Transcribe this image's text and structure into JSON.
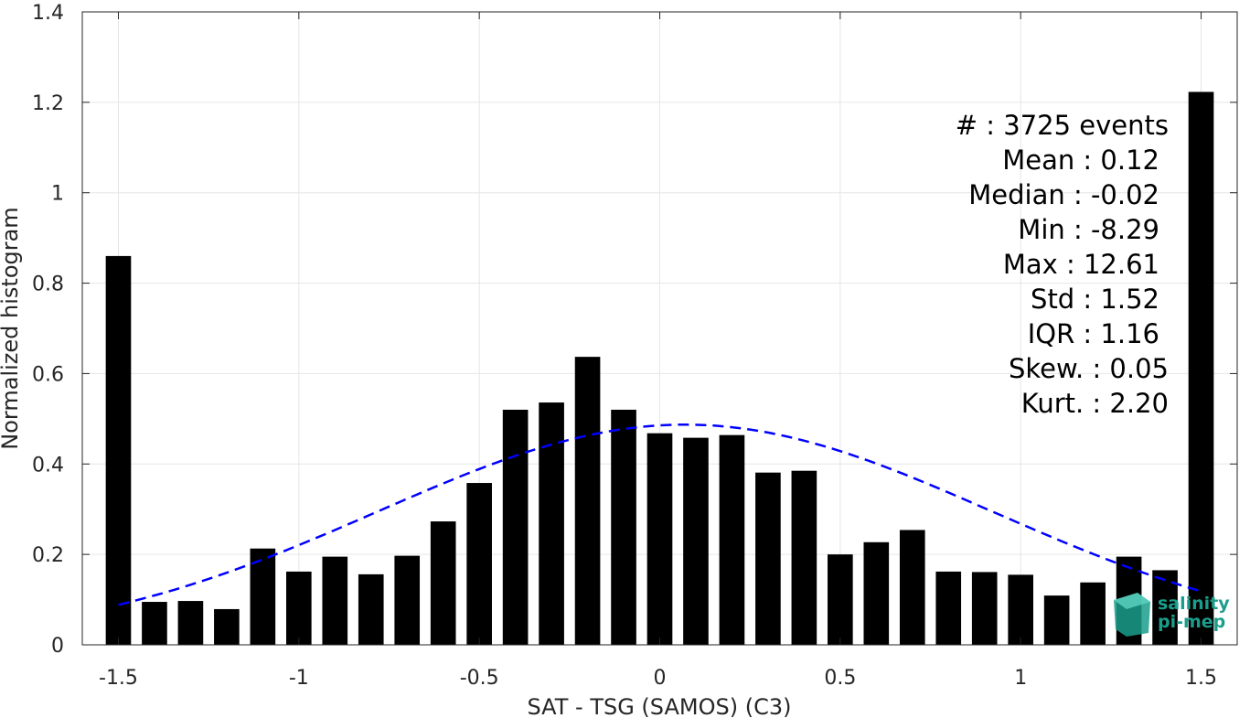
{
  "chart_data": {
    "type": "bar",
    "xlabel": "SAT - TSG (SAMOS) (C3)",
    "ylabel": "Normalized histogram",
    "xlim": [
      -1.6,
      1.6
    ],
    "ylim": [
      0,
      1.4
    ],
    "xticks": [
      -1.5,
      -1,
      -0.5,
      0,
      0.5,
      1,
      1.5
    ],
    "xtick_labels": [
      "-1.5",
      "-1",
      "-0.5",
      "0",
      "0.5",
      "1",
      "1.5"
    ],
    "yticks": [
      0,
      0.2,
      0.4,
      0.6,
      0.8,
      1,
      1.2,
      1.4
    ],
    "ytick_labels": [
      "0",
      "0.2",
      "0.4",
      "0.6",
      "0.8",
      "1",
      "1.2",
      "1.4"
    ],
    "grid": true,
    "bar_color": "#000000",
    "bin_width": 0.1,
    "x": [
      -1.5,
      -1.4,
      -1.3,
      -1.2,
      -1.1,
      -1.0,
      -0.9,
      -0.8,
      -0.7,
      -0.6,
      -0.5,
      -0.4,
      -0.3,
      -0.2,
      -0.1,
      0.0,
      0.1,
      0.2,
      0.3,
      0.4,
      0.5,
      0.6,
      0.7,
      0.8,
      0.9,
      1.0,
      1.1,
      1.2,
      1.3,
      1.4,
      1.5
    ],
    "values": [
      0.86,
      0.095,
      0.097,
      0.079,
      0.213,
      0.162,
      0.195,
      0.156,
      0.197,
      0.273,
      0.358,
      0.52,
      0.536,
      0.637,
      0.52,
      0.468,
      0.458,
      0.464,
      0.381,
      0.385,
      0.2,
      0.227,
      0.254,
      0.162,
      0.161,
      0.155,
      0.109,
      0.138,
      0.195,
      0.165,
      1.223
    ],
    "fit": {
      "type": "gaussian",
      "color": "#0000ff",
      "style": "dashed",
      "mean": 0.07,
      "peak": 0.487,
      "sigma": 0.85,
      "x_range": [
        -1.5,
        1.5
      ]
    },
    "stats": [
      {
        "label": "#",
        "sep": " : ",
        "value": "3725 events"
      },
      {
        "label": "Mean",
        "sep": " : ",
        "value": "0.12"
      },
      {
        "label": "Median",
        "sep": " : ",
        "value": "-0.02"
      },
      {
        "label": "Min",
        "sep": " : ",
        "value": "-8.29"
      },
      {
        "label": "Max",
        "sep": " : ",
        "value": "12.61"
      },
      {
        "label": "Std",
        "sep": " : ",
        "value": "1.52"
      },
      {
        "label": "IQR",
        "sep": " : ",
        "value": "1.16"
      },
      {
        "label": "Skew.",
        "sep": " : ",
        "value": "0.05"
      },
      {
        "label": "Kurt.",
        "sep": " : ",
        "value": "2.20"
      }
    ]
  },
  "logo": {
    "line1": "salinity",
    "line2": "pi-mep",
    "color": "#1a9e8c"
  }
}
